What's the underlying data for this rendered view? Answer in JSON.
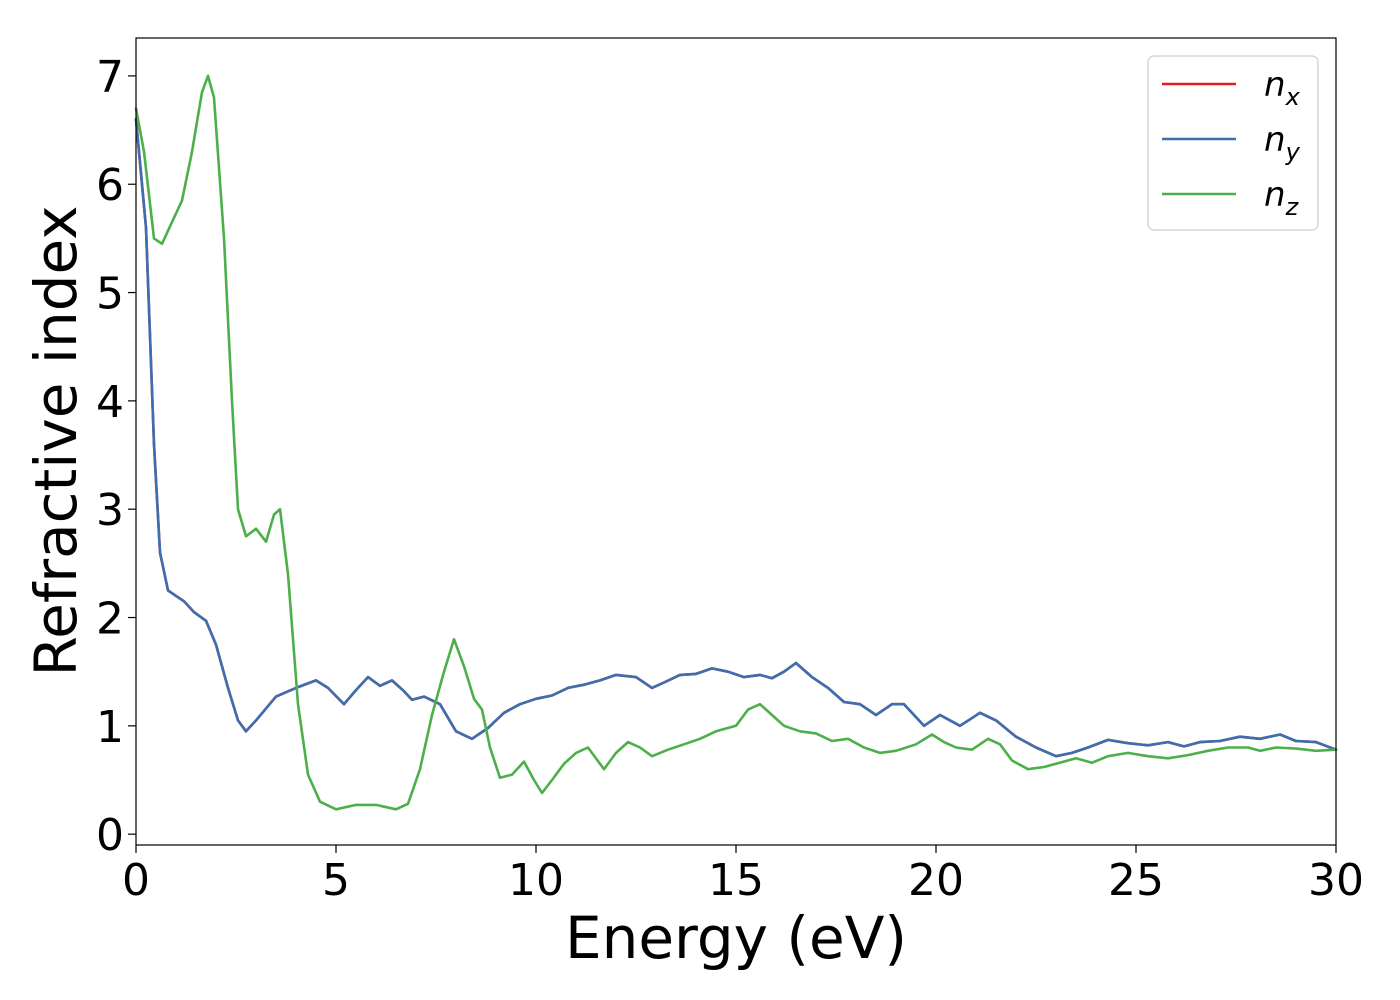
{
  "chart_data": {
    "type": "line",
    "title": "",
    "xlabel": "Energy (eV)",
    "ylabel": "Refractive index",
    "xlim": [
      0,
      30
    ],
    "ylim": [
      -0.1,
      7.35
    ],
    "xticks": [
      0,
      5,
      10,
      15,
      20,
      25,
      30
    ],
    "yticks": [
      0,
      1,
      2,
      3,
      4,
      5,
      6,
      7
    ],
    "grid": false,
    "legend_position": "top-right",
    "series": [
      {
        "name": "n",
        "sub": "x",
        "color": "#e41a1c",
        "points": [
          [
            0,
            6.6
          ],
          [
            0.25,
            5.6
          ],
          [
            0.45,
            3.6
          ],
          [
            0.6,
            2.6
          ],
          [
            0.8,
            2.25
          ],
          [
            1,
            2.2
          ],
          [
            1.2,
            2.15
          ],
          [
            1.45,
            2.05
          ],
          [
            1.75,
            1.97
          ],
          [
            2.0,
            1.75
          ],
          [
            2.3,
            1.35
          ],
          [
            2.55,
            1.05
          ],
          [
            2.75,
            0.95
          ],
          [
            3.0,
            1.05
          ],
          [
            3.5,
            1.27
          ],
          [
            4.0,
            1.35
          ],
          [
            4.5,
            1.42
          ],
          [
            4.8,
            1.35
          ],
          [
            5.2,
            1.2
          ],
          [
            5.5,
            1.33
          ],
          [
            5.8,
            1.45
          ],
          [
            6.1,
            1.37
          ],
          [
            6.4,
            1.42
          ],
          [
            6.7,
            1.32
          ],
          [
            6.9,
            1.24
          ],
          [
            7.2,
            1.27
          ],
          [
            7.6,
            1.2
          ],
          [
            8.0,
            0.95
          ],
          [
            8.4,
            0.88
          ],
          [
            8.8,
            0.98
          ],
          [
            9.2,
            1.12
          ],
          [
            9.6,
            1.2
          ],
          [
            10.0,
            1.25
          ],
          [
            10.4,
            1.28
          ],
          [
            10.8,
            1.35
          ],
          [
            11.2,
            1.38
          ],
          [
            11.6,
            1.42
          ],
          [
            12.0,
            1.47
          ],
          [
            12.5,
            1.45
          ],
          [
            12.9,
            1.35
          ],
          [
            13.2,
            1.4
          ],
          [
            13.6,
            1.47
          ],
          [
            14.0,
            1.48
          ],
          [
            14.4,
            1.53
          ],
          [
            14.8,
            1.5
          ],
          [
            15.2,
            1.45
          ],
          [
            15.6,
            1.47
          ],
          [
            15.9,
            1.44
          ],
          [
            16.2,
            1.5
          ],
          [
            16.5,
            1.58
          ],
          [
            16.9,
            1.45
          ],
          [
            17.3,
            1.35
          ],
          [
            17.7,
            1.22
          ],
          [
            18.1,
            1.2
          ],
          [
            18.5,
            1.1
          ],
          [
            18.9,
            1.2
          ],
          [
            19.2,
            1.2
          ],
          [
            19.7,
            1.0
          ],
          [
            20.1,
            1.1
          ],
          [
            20.6,
            1.0
          ],
          [
            21.1,
            1.12
          ],
          [
            21.5,
            1.05
          ],
          [
            22.0,
            0.9
          ],
          [
            22.5,
            0.8
          ],
          [
            23.0,
            0.72
          ],
          [
            23.4,
            0.75
          ],
          [
            23.8,
            0.8
          ],
          [
            24.3,
            0.87
          ],
          [
            24.8,
            0.84
          ],
          [
            25.3,
            0.82
          ],
          [
            25.8,
            0.85
          ],
          [
            26.2,
            0.81
          ],
          [
            26.6,
            0.85
          ],
          [
            27.1,
            0.86
          ],
          [
            27.6,
            0.9
          ],
          [
            28.1,
            0.88
          ],
          [
            28.6,
            0.92
          ],
          [
            29.0,
            0.86
          ],
          [
            29.5,
            0.85
          ],
          [
            30.0,
            0.78
          ]
        ]
      },
      {
        "name": "n",
        "sub": "y",
        "color": "#3b6fb0",
        "points": [
          [
            0,
            6.6
          ],
          [
            0.25,
            5.6
          ],
          [
            0.45,
            3.6
          ],
          [
            0.6,
            2.6
          ],
          [
            0.8,
            2.25
          ],
          [
            1,
            2.2
          ],
          [
            1.2,
            2.15
          ],
          [
            1.45,
            2.05
          ],
          [
            1.75,
            1.97
          ],
          [
            2.0,
            1.75
          ],
          [
            2.3,
            1.35
          ],
          [
            2.55,
            1.05
          ],
          [
            2.75,
            0.95
          ],
          [
            3.0,
            1.05
          ],
          [
            3.5,
            1.27
          ],
          [
            4.0,
            1.35
          ],
          [
            4.5,
            1.42
          ],
          [
            4.8,
            1.35
          ],
          [
            5.2,
            1.2
          ],
          [
            5.5,
            1.33
          ],
          [
            5.8,
            1.45
          ],
          [
            6.1,
            1.37
          ],
          [
            6.4,
            1.42
          ],
          [
            6.7,
            1.32
          ],
          [
            6.9,
            1.24
          ],
          [
            7.2,
            1.27
          ],
          [
            7.6,
            1.2
          ],
          [
            8.0,
            0.95
          ],
          [
            8.4,
            0.88
          ],
          [
            8.8,
            0.98
          ],
          [
            9.2,
            1.12
          ],
          [
            9.6,
            1.2
          ],
          [
            10.0,
            1.25
          ],
          [
            10.4,
            1.28
          ],
          [
            10.8,
            1.35
          ],
          [
            11.2,
            1.38
          ],
          [
            11.6,
            1.42
          ],
          [
            12.0,
            1.47
          ],
          [
            12.5,
            1.45
          ],
          [
            12.9,
            1.35
          ],
          [
            13.2,
            1.4
          ],
          [
            13.6,
            1.47
          ],
          [
            14.0,
            1.48
          ],
          [
            14.4,
            1.53
          ],
          [
            14.8,
            1.5
          ],
          [
            15.2,
            1.45
          ],
          [
            15.6,
            1.47
          ],
          [
            15.9,
            1.44
          ],
          [
            16.2,
            1.5
          ],
          [
            16.5,
            1.58
          ],
          [
            16.9,
            1.45
          ],
          [
            17.3,
            1.35
          ],
          [
            17.7,
            1.22
          ],
          [
            18.1,
            1.2
          ],
          [
            18.5,
            1.1
          ],
          [
            18.9,
            1.2
          ],
          [
            19.2,
            1.2
          ],
          [
            19.7,
            1.0
          ],
          [
            20.1,
            1.1
          ],
          [
            20.6,
            1.0
          ],
          [
            21.1,
            1.12
          ],
          [
            21.5,
            1.05
          ],
          [
            22.0,
            0.9
          ],
          [
            22.5,
            0.8
          ],
          [
            23.0,
            0.72
          ],
          [
            23.4,
            0.75
          ],
          [
            23.8,
            0.8
          ],
          [
            24.3,
            0.87
          ],
          [
            24.8,
            0.84
          ],
          [
            25.3,
            0.82
          ],
          [
            25.8,
            0.85
          ],
          [
            26.2,
            0.81
          ],
          [
            26.6,
            0.85
          ],
          [
            27.1,
            0.86
          ],
          [
            27.6,
            0.9
          ],
          [
            28.1,
            0.88
          ],
          [
            28.6,
            0.92
          ],
          [
            29.0,
            0.86
          ],
          [
            29.5,
            0.85
          ],
          [
            30.0,
            0.78
          ]
        ]
      },
      {
        "name": "n",
        "sub": "z",
        "color": "#4daf4a",
        "points": [
          [
            0,
            6.7
          ],
          [
            0.2,
            6.3
          ],
          [
            0.45,
            5.5
          ],
          [
            0.65,
            5.45
          ],
          [
            0.9,
            5.65
          ],
          [
            1.15,
            5.85
          ],
          [
            1.4,
            6.3
          ],
          [
            1.65,
            6.85
          ],
          [
            1.8,
            7.0
          ],
          [
            1.95,
            6.8
          ],
          [
            2.2,
            5.5
          ],
          [
            2.4,
            4.0
          ],
          [
            2.55,
            3.0
          ],
          [
            2.75,
            2.75
          ],
          [
            3.0,
            2.82
          ],
          [
            3.25,
            2.7
          ],
          [
            3.45,
            2.95
          ],
          [
            3.6,
            3.0
          ],
          [
            3.8,
            2.4
          ],
          [
            4.05,
            1.2
          ],
          [
            4.3,
            0.55
          ],
          [
            4.6,
            0.3
          ],
          [
            5.0,
            0.23
          ],
          [
            5.5,
            0.27
          ],
          [
            6.0,
            0.27
          ],
          [
            6.5,
            0.23
          ],
          [
            6.8,
            0.28
          ],
          [
            7.1,
            0.6
          ],
          [
            7.4,
            1.1
          ],
          [
            7.7,
            1.5
          ],
          [
            7.95,
            1.8
          ],
          [
            8.2,
            1.55
          ],
          [
            8.45,
            1.25
          ],
          [
            8.65,
            1.15
          ],
          [
            8.85,
            0.8
          ],
          [
            9.1,
            0.52
          ],
          [
            9.4,
            0.55
          ],
          [
            9.7,
            0.67
          ],
          [
            9.95,
            0.5
          ],
          [
            10.15,
            0.38
          ],
          [
            10.4,
            0.5
          ],
          [
            10.7,
            0.65
          ],
          [
            11.0,
            0.75
          ],
          [
            11.3,
            0.8
          ],
          [
            11.7,
            0.6
          ],
          [
            12.0,
            0.75
          ],
          [
            12.3,
            0.85
          ],
          [
            12.6,
            0.8
          ],
          [
            12.9,
            0.72
          ],
          [
            13.3,
            0.78
          ],
          [
            13.7,
            0.83
          ],
          [
            14.1,
            0.88
          ],
          [
            14.5,
            0.95
          ],
          [
            15.0,
            1.0
          ],
          [
            15.3,
            1.15
          ],
          [
            15.6,
            1.2
          ],
          [
            15.9,
            1.1
          ],
          [
            16.2,
            1.0
          ],
          [
            16.6,
            0.95
          ],
          [
            17.0,
            0.93
          ],
          [
            17.4,
            0.86
          ],
          [
            17.8,
            0.88
          ],
          [
            18.2,
            0.8
          ],
          [
            18.6,
            0.75
          ],
          [
            19.0,
            0.77
          ],
          [
            19.5,
            0.83
          ],
          [
            19.9,
            0.92
          ],
          [
            20.2,
            0.85
          ],
          [
            20.5,
            0.8
          ],
          [
            20.9,
            0.78
          ],
          [
            21.3,
            0.88
          ],
          [
            21.6,
            0.83
          ],
          [
            21.9,
            0.68
          ],
          [
            22.3,
            0.6
          ],
          [
            22.7,
            0.62
          ],
          [
            23.0,
            0.65
          ],
          [
            23.5,
            0.7
          ],
          [
            23.9,
            0.66
          ],
          [
            24.3,
            0.72
          ],
          [
            24.8,
            0.75
          ],
          [
            25.3,
            0.72
          ],
          [
            25.8,
            0.7
          ],
          [
            26.3,
            0.73
          ],
          [
            26.8,
            0.77
          ],
          [
            27.3,
            0.8
          ],
          [
            27.8,
            0.8
          ],
          [
            28.1,
            0.77
          ],
          [
            28.5,
            0.8
          ],
          [
            29.0,
            0.79
          ],
          [
            29.5,
            0.77
          ],
          [
            30.0,
            0.78
          ]
        ]
      }
    ]
  }
}
